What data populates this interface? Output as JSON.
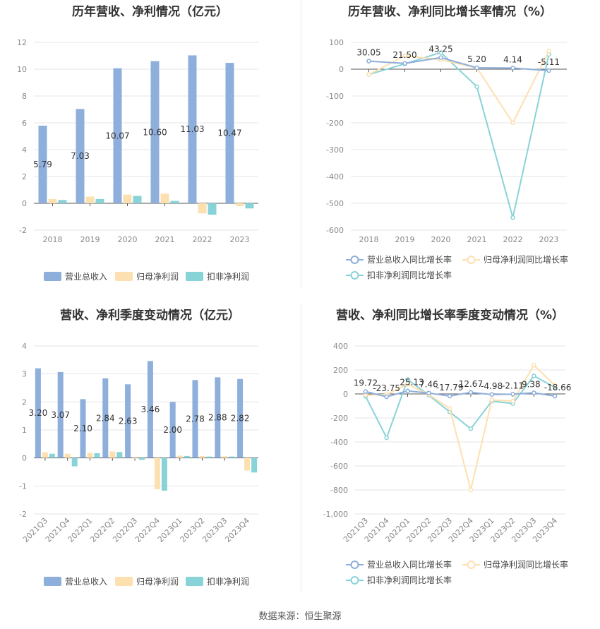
{
  "source": "数据来源：恒生聚源",
  "colors": {
    "revenue": "#8eaedb",
    "net_profit": "#fde0b0",
    "deducted": "#88d3d8"
  },
  "chart_data": [
    {
      "type": "bar",
      "title": "历年营收、净利情况（亿元）",
      "categories": [
        "2018",
        "2019",
        "2020",
        "2021",
        "2022",
        "2023"
      ],
      "ylim": [
        -2,
        12
      ],
      "yticks": [
        -2,
        0,
        2,
        4,
        6,
        8,
        10,
        12
      ],
      "grid": true,
      "legend_position": "bottom",
      "series": [
        {
          "name": "营业总收入",
          "values": [
            5.79,
            7.03,
            10.07,
            10.6,
            11.03,
            10.47
          ],
          "labels": [
            "5.79",
            "7.03",
            "10.07",
            "10.60",
            "11.03",
            "10.47"
          ]
        },
        {
          "name": "归母净利润",
          "values": [
            0.32,
            0.5,
            0.65,
            0.72,
            -0.75,
            -0.2
          ]
        },
        {
          "name": "扣非净利润",
          "values": [
            0.25,
            0.32,
            0.55,
            0.18,
            -0.85,
            -0.38
          ]
        }
      ]
    },
    {
      "type": "line",
      "title": "历年营收、净利同比增长率情况（%）",
      "categories": [
        "2018",
        "2019",
        "2020",
        "2021",
        "2022",
        "2023"
      ],
      "ylim": [
        -600,
        100
      ],
      "yticks": [
        -600,
        -500,
        -400,
        -300,
        -200,
        -100,
        0,
        100
      ],
      "grid": true,
      "legend_position": "bottom",
      "series": [
        {
          "name": "营业总收入同比增长率",
          "values": [
            30.05,
            21.5,
            43.25,
            5.2,
            4.14,
            -5.11
          ],
          "labels": [
            "30.05",
            "21.50",
            "43.25",
            "5.20",
            "4.14",
            "-5.11"
          ]
        },
        {
          "name": "归母净利润同比增长率",
          "values": [
            -20,
            50,
            35,
            5,
            -200,
            68
          ]
        },
        {
          "name": "扣非净利润同比增长率",
          "values": [
            -20,
            20,
            62,
            -65,
            -553,
            55
          ]
        }
      ]
    },
    {
      "type": "bar",
      "title": "营收、净利季度变动情况（亿元）",
      "categories": [
        "2021Q3",
        "2021Q4",
        "2022Q1",
        "2022Q2",
        "2022Q3",
        "2022Q4",
        "2023Q1",
        "2023Q2",
        "2023Q3",
        "2023Q4"
      ],
      "ylim": [
        -2,
        4
      ],
      "yticks": [
        -2,
        -1,
        0,
        1,
        2,
        3,
        4
      ],
      "grid": true,
      "legend_position": "bottom",
      "series": [
        {
          "name": "营业总收入",
          "values": [
            3.2,
            3.07,
            2.1,
            2.84,
            2.63,
            3.46,
            2.0,
            2.78,
            2.88,
            2.82
          ],
          "labels": [
            "3.20",
            "3.07",
            "2.10",
            "2.84",
            "2.63",
            "3.46",
            "2.00",
            "2.78",
            "2.88",
            "2.82"
          ]
        },
        {
          "name": "归母净利润",
          "values": [
            0.2,
            0.15,
            0.18,
            0.23,
            -0.02,
            -1.12,
            0.08,
            0.07,
            0.06,
            -0.45
          ]
        },
        {
          "name": "扣非净利润",
          "values": [
            0.15,
            -0.3,
            0.17,
            0.21,
            -0.07,
            -1.17,
            0.07,
            0.05,
            0.05,
            -0.52
          ]
        }
      ]
    },
    {
      "type": "line",
      "title": "营收、净利同比增长率季度变动情况（%）",
      "categories": [
        "2021Q3",
        "2021Q4",
        "2022Q1",
        "2022Q2",
        "2022Q3",
        "2022Q4",
        "2023Q1",
        "2023Q2",
        "2023Q3",
        "2023Q4"
      ],
      "ylim": [
        -1000,
        400
      ],
      "yticks": [
        -1000,
        -800,
        -600,
        -400,
        -200,
        0,
        200,
        400
      ],
      "ytick_labels": [
        "-1,000",
        "-800",
        "-600",
        "-400",
        "-200",
        "0",
        "200",
        "400"
      ],
      "grid": true,
      "legend_position": "bottom",
      "series": [
        {
          "name": "营业总收入同比增长率",
          "values": [
            19.72,
            -23.75,
            25.13,
            7.46,
            -17.79,
            12.67,
            -4.98,
            -2.11,
            9.38,
            -18.66
          ],
          "labels": [
            "19.72",
            "-23.75",
            "25.13",
            "7.46",
            "-17.79",
            "12.67",
            "-4.98",
            "-2.11",
            "9.38",
            "-18.66"
          ]
        },
        {
          "name": "归母净利润同比增长率",
          "values": [
            -10,
            -5,
            80,
            -5,
            -120,
            -800,
            -50,
            -60,
            240,
            70
          ]
        },
        {
          "name": "扣非净利润同比增长率",
          "values": [
            -20,
            -365,
            120,
            -10,
            -150,
            -290,
            -60,
            -80,
            150,
            55
          ]
        }
      ]
    }
  ]
}
